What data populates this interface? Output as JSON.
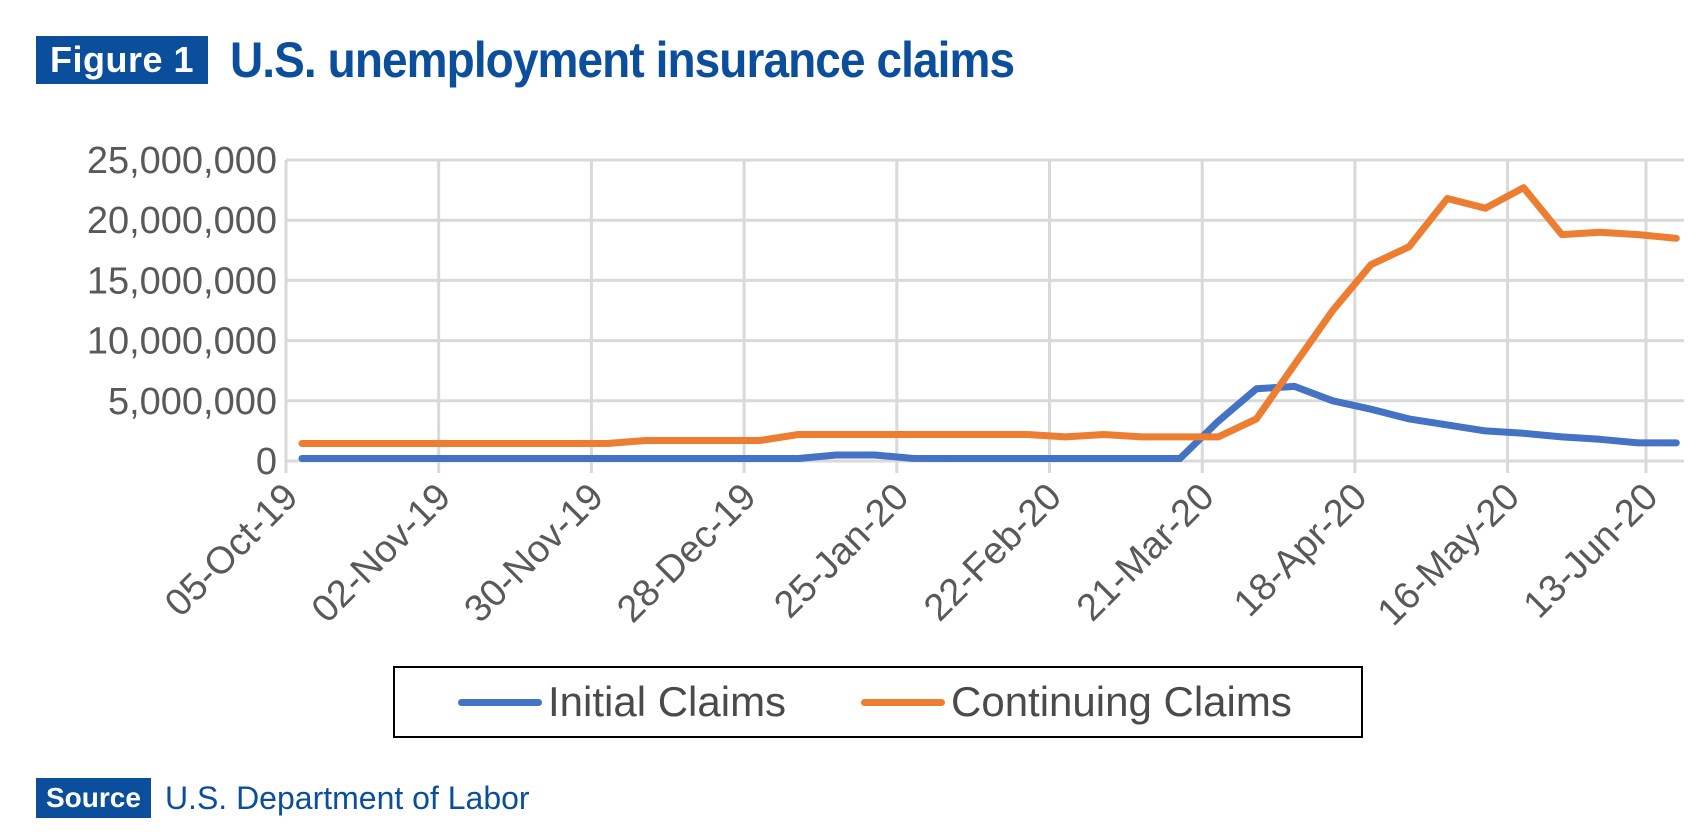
{
  "header": {
    "figure_label": "Figure 1",
    "title": "U.S. unemployment insurance claims"
  },
  "footer": {
    "source_label": "Source",
    "source_text": "U.S. Department of Labor"
  },
  "colors": {
    "brand": "#0b4f9c",
    "initial": "#4472c4",
    "continuing": "#ed7d31",
    "grid": "#d9d9d9",
    "text": "#595959"
  },
  "chart_data": {
    "type": "line",
    "title": "U.S. unemployment insurance claims",
    "xlabel": "",
    "ylabel": "",
    "ylim": [
      0,
      25000000
    ],
    "yticks": [
      "0",
      "5,000,000",
      "10,000,000",
      "15,000,000",
      "20,000,000",
      "25,000,000"
    ],
    "xticks": [
      "05-Oct-19",
      "02-Nov-19",
      "30-Nov-19",
      "28-Dec-19",
      "25-Jan-20",
      "22-Feb-20",
      "21-Mar-20",
      "18-Apr-20",
      "16-May-20",
      "13-Jun-20"
    ],
    "grid": true,
    "legend_position": "bottom",
    "x": [
      "05-Oct-19",
      "12-Oct-19",
      "19-Oct-19",
      "26-Oct-19",
      "02-Nov-19",
      "09-Nov-19",
      "16-Nov-19",
      "23-Nov-19",
      "30-Nov-19",
      "07-Dec-19",
      "14-Dec-19",
      "21-Dec-19",
      "28-Dec-19",
      "04-Jan-20",
      "11-Jan-20",
      "18-Jan-20",
      "25-Jan-20",
      "01-Feb-20",
      "08-Feb-20",
      "15-Feb-20",
      "22-Feb-20",
      "29-Feb-20",
      "07-Mar-20",
      "14-Mar-20",
      "21-Mar-20",
      "28-Mar-20",
      "04-Apr-20",
      "11-Apr-20",
      "18-Apr-20",
      "25-Apr-20",
      "02-May-20",
      "09-May-20",
      "16-May-20",
      "23-May-20",
      "30-May-20",
      "06-Jun-20",
      "13-Jun-20"
    ],
    "series": [
      {
        "name": "Initial Claims",
        "values": [
          210000,
          210000,
          210000,
          210000,
          210000,
          210000,
          210000,
          210000,
          210000,
          210000,
          210000,
          210000,
          210000,
          210000,
          500000,
          500000,
          220000,
          210000,
          210000,
          210000,
          210000,
          210000,
          210000,
          210000,
          3300000,
          6000000,
          6200000,
          5000000,
          4300000,
          3500000,
          3000000,
          2500000,
          2300000,
          2000000,
          1800000,
          1500000,
          1500000
        ]
      },
      {
        "name": "Continuing Claims",
        "values": [
          1450000,
          1450000,
          1450000,
          1450000,
          1450000,
          1450000,
          1450000,
          1450000,
          1450000,
          1700000,
          1700000,
          1700000,
          1700000,
          2200000,
          2200000,
          2200000,
          2200000,
          2200000,
          2200000,
          2200000,
          2000000,
          2200000,
          2000000,
          2000000,
          2000000,
          3500000,
          8000000,
          12500000,
          16300000,
          17800000,
          21800000,
          21000000,
          22700000,
          18800000,
          19000000,
          18800000,
          18500000
        ]
      }
    ]
  }
}
